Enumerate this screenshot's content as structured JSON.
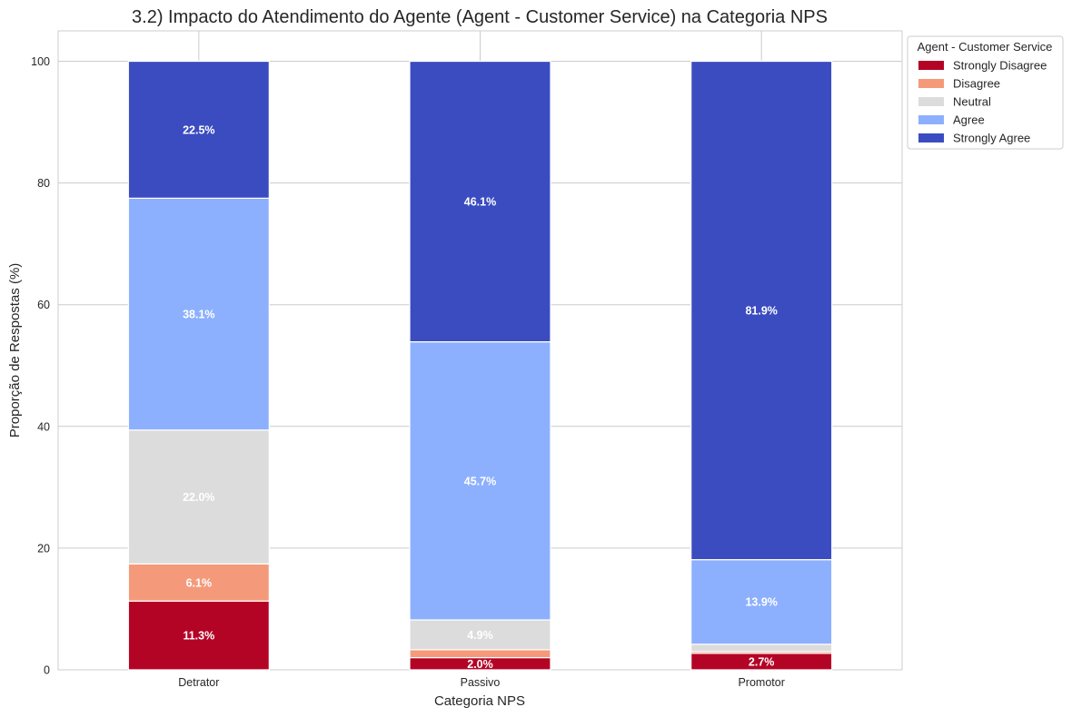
{
  "chart_data": {
    "type": "bar",
    "stacked": true,
    "title": "3.2) Impacto do Atendimento do Agente (Agent - Customer Service) na Categoria NPS",
    "xlabel": "Categoria NPS",
    "ylabel": "Proporção de Respostas (%)",
    "ylim": [
      0,
      105
    ],
    "yticks": [
      0,
      20,
      40,
      60,
      80,
      100
    ],
    "grid": true,
    "legend_position": "outside-top-right",
    "legend_title": "Agent - Customer Service",
    "categories": [
      "Detrator",
      "Passivo",
      "Promotor"
    ],
    "series": [
      {
        "name": "Strongly Disagree",
        "color": "#b40426",
        "values": [
          11.3,
          2.0,
          2.7
        ],
        "labels": [
          "11.3%",
          "2.0%",
          "2.7%"
        ]
      },
      {
        "name": "Disagree",
        "color": "#f49a7b",
        "values": [
          6.1,
          1.3,
          0.3
        ],
        "labels": [
          "6.1%",
          "",
          ""
        ]
      },
      {
        "name": "Neutral",
        "color": "#dddcdc",
        "values": [
          22.0,
          4.9,
          1.2
        ],
        "labels": [
          "22.0%",
          "4.9%",
          ""
        ]
      },
      {
        "name": "Agree",
        "color": "#8db0fe",
        "values": [
          38.1,
          45.7,
          13.9
        ],
        "labels": [
          "38.1%",
          "45.7%",
          "13.9%"
        ]
      },
      {
        "name": "Strongly Agree",
        "color": "#3b4cc0",
        "values": [
          22.5,
          46.1,
          81.9
        ],
        "labels": [
          "22.5%",
          "46.1%",
          "81.9%"
        ]
      }
    ]
  }
}
